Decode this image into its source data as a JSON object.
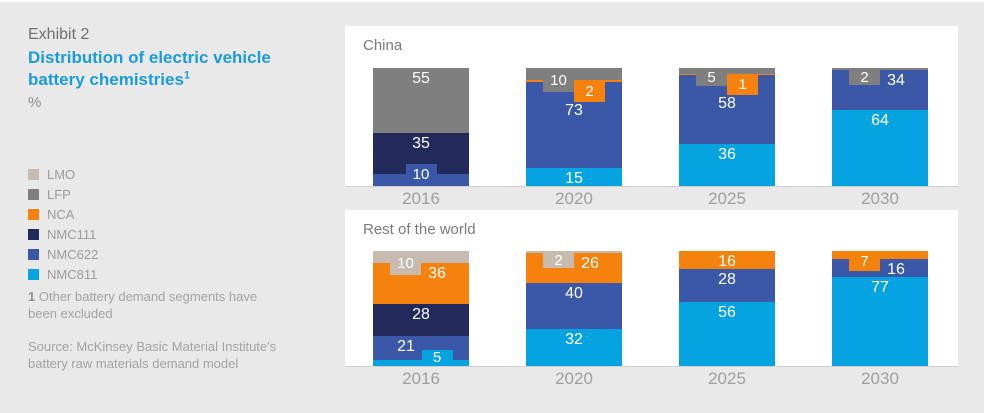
{
  "header": {
    "exhibit": "Exhibit 2",
    "title": "Distribution of electric vehicle battery chemistries",
    "title_sup": "1",
    "unit": "%"
  },
  "legend": [
    {
      "label": "LMO",
      "color": "#c6bbae"
    },
    {
      "label": "LFP",
      "color": "#7f7f7f"
    },
    {
      "label": "NCA",
      "color": "#f5820d"
    },
    {
      "label": "NMC111",
      "color": "#212a5a"
    },
    {
      "label": "NMC622",
      "color": "#3b58a8"
    },
    {
      "label": "NMC811",
      "color": "#06a3e1"
    }
  ],
  "footnote": {
    "marker": "1",
    "text": "Other battery demand segments have been excluded"
  },
  "source": "Source: McKinsey Basic Material Institute's battery raw materials demand model",
  "chart_data": [
    {
      "type": "bar",
      "stacked": true,
      "title": "China",
      "unit": "%",
      "ylim": [
        0,
        100
      ],
      "grid": false,
      "legend_position": "left",
      "categories": [
        "2016",
        "2020",
        "2025",
        "2030"
      ],
      "segment_order": "top-to-bottom",
      "bars": [
        {
          "category": "2016",
          "segments": [
            {
              "name": "LFP",
              "value": 55,
              "label": "inside"
            },
            {
              "name": "NMC111",
              "value": 35,
              "label": "inside"
            },
            {
              "name": "NMC622",
              "value": 10,
              "label": "tab-up",
              "dx": 0
            }
          ]
        },
        {
          "category": "2020",
          "segments": [
            {
              "name": "LFP",
              "value": 10,
              "label": "tab-down"
            },
            {
              "name": "NCA",
              "value": 2,
              "label": "tab-down"
            },
            {
              "name": "NMC622",
              "value": 73,
              "label": "inside"
            },
            {
              "name": "NMC811",
              "value": 15,
              "label": "inside"
            }
          ]
        },
        {
          "category": "2025",
          "segments": [
            {
              "name": "LFP",
              "value": 5,
              "label": "tab-down"
            },
            {
              "name": "NCA",
              "value": 1,
              "label": "tab-down"
            },
            {
              "name": "NMC622",
              "value": 58,
              "label": "inside"
            },
            {
              "name": "NMC811",
              "value": 36,
              "label": "inside"
            }
          ]
        },
        {
          "category": "2030",
          "segments": [
            {
              "name": "LFP",
              "value": 2,
              "label": "tab-down"
            },
            {
              "name": "NMC622",
              "value": 34,
              "label": "inside",
              "dx": 16
            },
            {
              "name": "NMC811",
              "value": 64,
              "label": "inside"
            }
          ]
        }
      ]
    },
    {
      "type": "bar",
      "stacked": true,
      "title": "Rest of the world",
      "unit": "%",
      "ylim": [
        0,
        100
      ],
      "grid": false,
      "legend_position": "left",
      "categories": [
        "2016",
        "2020",
        "2025",
        "2030"
      ],
      "segment_order": "top-to-bottom",
      "bars": [
        {
          "category": "2016",
          "segments": [
            {
              "name": "LMO",
              "value": 10,
              "label": "tab-down"
            },
            {
              "name": "NCA",
              "value": 36,
              "label": "inside",
              "dx": 16
            },
            {
              "name": "NMC111",
              "value": 28,
              "label": "inside"
            },
            {
              "name": "NMC622",
              "value": 21,
              "label": "inside",
              "dx": -15
            },
            {
              "name": "NMC811",
              "value": 5,
              "label": "tab-up",
              "dx": 16
            }
          ]
        },
        {
          "category": "2020",
          "segments": [
            {
              "name": "LMO",
              "value": 2,
              "label": "tab-down"
            },
            {
              "name": "NCA",
              "value": 26,
              "label": "inside",
              "dx": 16
            },
            {
              "name": "NMC622",
              "value": 40,
              "label": "inside"
            },
            {
              "name": "NMC811",
              "value": 32,
              "label": "inside"
            }
          ]
        },
        {
          "category": "2025",
          "segments": [
            {
              "name": "NCA",
              "value": 16,
              "label": "inside"
            },
            {
              "name": "NMC622",
              "value": 28,
              "label": "inside"
            },
            {
              "name": "NMC811",
              "value": 56,
              "label": "inside"
            }
          ]
        },
        {
          "category": "2030",
          "segments": [
            {
              "name": "NCA",
              "value": 7,
              "label": "tab-down"
            },
            {
              "name": "NMC622",
              "value": 16,
              "label": "inside",
              "dx": 16
            },
            {
              "name": "NMC811",
              "value": 77,
              "label": "inside"
            }
          ]
        }
      ]
    }
  ]
}
